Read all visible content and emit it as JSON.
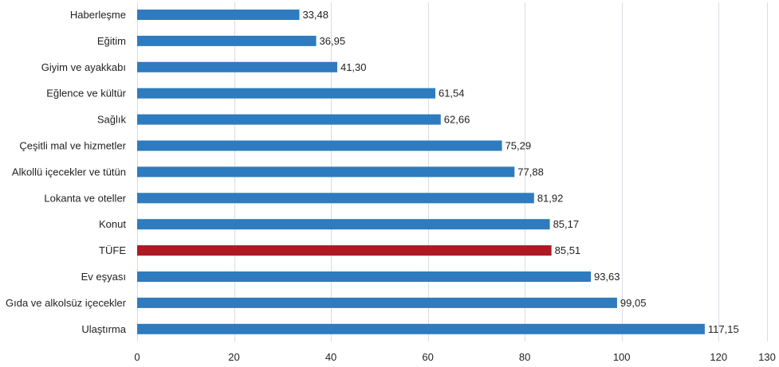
{
  "chart_data": {
    "type": "bar",
    "orientation": "horizontal",
    "categories": [
      "Haberleşme",
      "Eğitim",
      "Giyim ve ayakkabı",
      "Eğlence ve kültür",
      "Sağlık",
      "Çeşitli mal ve hizmetler",
      "Alkollü içecekler ve tütün",
      "Lokanta ve oteller",
      "Konut",
      "TÜFE",
      "Ev eşyası",
      "Gıda ve alkolsüz içecekler",
      "Ulaştırma"
    ],
    "values": [
      33.48,
      36.95,
      41.3,
      61.54,
      62.66,
      75.29,
      77.88,
      81.92,
      85.17,
      85.51,
      93.63,
      99.05,
      117.15
    ],
    "value_labels": [
      "33,48",
      "36,95",
      "41,30",
      "61,54",
      "62,66",
      "75,29",
      "77,88",
      "81,92",
      "85,17",
      "85,51",
      "93,63",
      "99,05",
      "117,15"
    ],
    "highlight": "TÜFE",
    "xlim": [
      0,
      130
    ],
    "xticks": [
      0,
      20,
      40,
      60,
      80,
      100,
      120,
      130
    ],
    "xtick_labels": [
      "0",
      "20",
      "40",
      "60",
      "80",
      "100",
      "120",
      "130"
    ],
    "grid": true,
    "title": "",
    "xlabel": "",
    "ylabel": "",
    "colors": {
      "bar": "#2e7bbf",
      "highlight": "#ad1a23",
      "grid": "#d9dce3"
    }
  }
}
